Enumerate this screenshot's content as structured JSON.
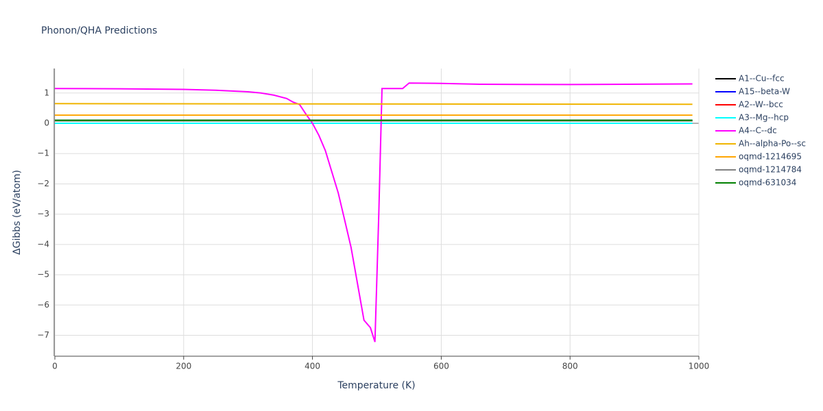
{
  "chart_data": {
    "type": "line",
    "title": "Phonon/QHA Predictions",
    "x_label": "Temperature (K)",
    "y_label": "ΔGibbs (eV/atom)",
    "xlim": [
      0,
      1000
    ],
    "xticks": [
      0,
      200,
      400,
      600,
      800,
      1000
    ],
    "ylim": [
      -7.69,
      1.81
    ],
    "yticks": [
      {
        "value": -7,
        "label": "−7"
      },
      {
        "value": -6,
        "label": "−6"
      },
      {
        "value": -5,
        "label": "−5"
      },
      {
        "value": -4,
        "label": "−4"
      },
      {
        "value": -3,
        "label": "−3"
      },
      {
        "value": -2,
        "label": "−2"
      },
      {
        "value": -1,
        "label": "−1"
      },
      0,
      1
    ],
    "grid": true,
    "legend": "right",
    "series": [
      {
        "name": "A1--Cu--fcc",
        "color": "#000000",
        "x": [
          0,
          990
        ],
        "values": [
          0.1,
          0.1
        ]
      },
      {
        "name": "A15--beta-W",
        "color": "#0000ff",
        "x": [
          0,
          990
        ],
        "values": [
          0.08,
          0.08
        ]
      },
      {
        "name": "A2--W--bcc",
        "color": "#ff0000",
        "x": [
          0,
          990
        ],
        "values": [
          0.08,
          0.08
        ]
      },
      {
        "name": "A3--Mg--hcp",
        "color": "#00ffff",
        "x": [
          0,
          990
        ],
        "values": [
          0,
          0
        ]
      },
      {
        "name": "A4--C--dc",
        "color": "#ff00ff",
        "x": [
          0,
          100,
          200,
          250,
          300,
          320,
          340,
          360,
          370,
          380,
          390,
          400,
          410,
          420,
          430,
          440,
          450,
          460,
          470,
          480,
          490,
          497,
          503,
          508,
          520,
          540,
          550,
          600,
          660,
          800,
          990
        ],
        "values": [
          1.15,
          1.14,
          1.12,
          1.09,
          1.04,
          1.0,
          0.93,
          0.82,
          0.7,
          0.62,
          0.3,
          0.0,
          -0.4,
          -0.9,
          -1.6,
          -2.3,
          -3.2,
          -4.1,
          -5.3,
          -6.5,
          -6.75,
          -7.22,
          -3.0,
          1.15,
          1.15,
          1.15,
          1.33,
          1.32,
          1.29,
          1.28,
          1.3
        ]
      },
      {
        "name": "Ah--alpha-Po--sc",
        "color": "#f0b400",
        "x": [
          0,
          990
        ],
        "values": [
          0.65,
          0.63
        ]
      },
      {
        "name": "oqmd-1214695",
        "color": "#ffa500",
        "x": [
          0,
          990
        ],
        "values": [
          0.27,
          0.27
        ]
      },
      {
        "name": "oqmd-1214784",
        "color": "#808080",
        "x": [
          0,
          990
        ],
        "values": [
          0.08,
          0.08
        ]
      },
      {
        "name": "oqmd-631034",
        "color": "#008000",
        "x": [
          0,
          990
        ],
        "values": [
          0.1,
          0.1
        ]
      }
    ]
  }
}
